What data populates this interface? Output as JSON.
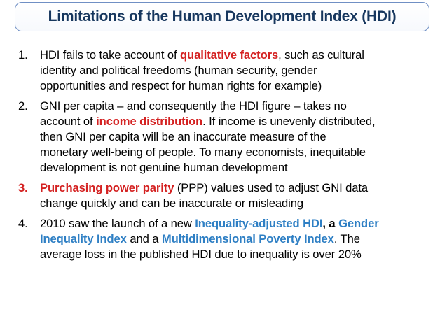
{
  "title": "Limitations of the Human Development Index (HDI)",
  "items": [
    {
      "number": "1.",
      "l1a": "HDI fails to take account of ",
      "l1b": "qualitative factors",
      "l1c": ", such as cultural",
      "l2": "identity and political freedoms (human security, gender",
      "l3": "opportunities and respect for human rights for example)"
    },
    {
      "number": "2.",
      "l1": "GNI per capita – and consequently the HDI figure – takes no",
      "l2a": "account of ",
      "l2b": "income distribution",
      "l2c": ". If income is unevenly distributed,",
      "l3": "then GNI per capita will be an inaccurate measure of the",
      "l4": "monetary well-being of people. To many economists, inequitable",
      "l5": "development is not genuine human development"
    },
    {
      "number": "3.",
      "l1a": "Purchasing power parity",
      "l1b": " (PPP) values used to adjust GNI data",
      "l2": "change quickly and can be inaccurate or misleading"
    },
    {
      "number": "4.",
      "l1a": "2010 saw the launch of a new ",
      "l1b": "Inequality-adjusted HDI",
      "l1c": ", a ",
      "l1d": "Gender",
      "l2a": "Inequality Index",
      "l2b": " and a ",
      "l2c": "Multidimensional Poverty Index",
      "l2d": ". The",
      "l3": "average loss in the published HDI due to inequality is over 20%"
    }
  ]
}
